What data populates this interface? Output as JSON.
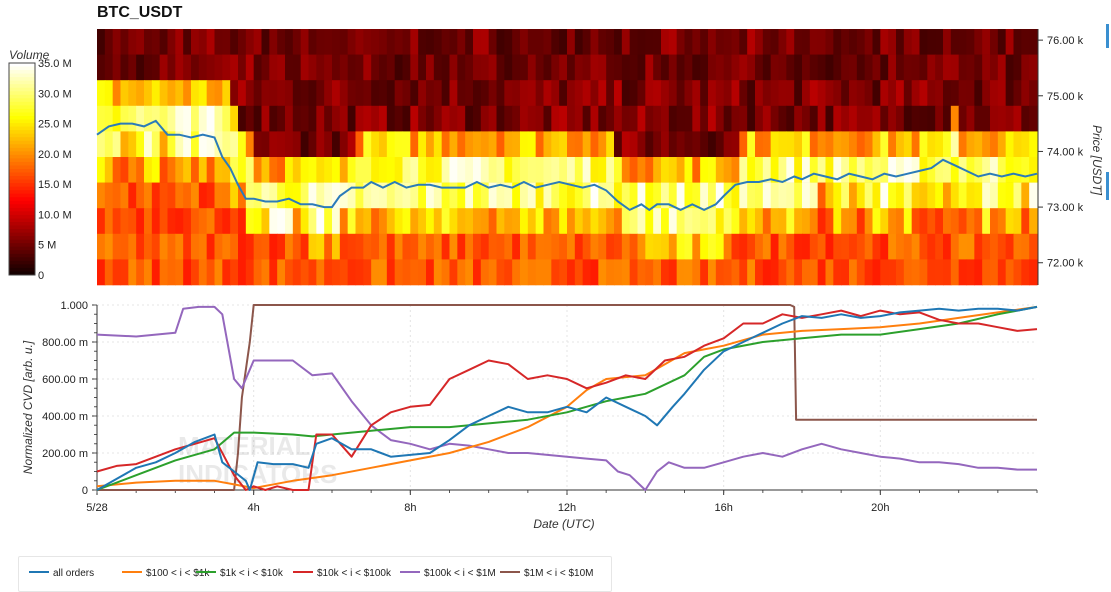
{
  "title": "BTC_USDT",
  "colors": {
    "all_orders": "#1f77b4",
    "s100_1k": "#ff7f0e",
    "s1k_10k": "#2ca02c",
    "s10k_100k": "#d62728",
    "s100k_1m": "#9467bd",
    "s1m_10m": "#8c564b"
  },
  "chart_data": [
    {
      "type": "heatmap",
      "colorbar": {
        "title": "Volume",
        "ticks": [
          "35.0 M",
          "30.0 M",
          "25.0 M",
          "20.0 M",
          "15.0 M",
          "10.0 M",
          "5 M",
          "0"
        ],
        "range": [
          0,
          35
        ],
        "colorscale": "hot"
      },
      "ylabel": "Price [USDT]",
      "yticks": [
        "76.00 k",
        "75.00 k",
        "74.00 k",
        "73.00 k",
        "72.00 k"
      ],
      "ylim": [
        71.6,
        76.2
      ],
      "price_line_color": "#2b7bb9",
      "price_line": [
        [
          0,
          74.3
        ],
        [
          0.3,
          74.45
        ],
        [
          0.6,
          74.5
        ],
        [
          0.9,
          74.5
        ],
        [
          1.2,
          74.45
        ],
        [
          1.5,
          74.55
        ],
        [
          1.8,
          74.3
        ],
        [
          2.1,
          74.3
        ],
        [
          2.4,
          74.25
        ],
        [
          2.7,
          74.3
        ],
        [
          3.0,
          74.25
        ],
        [
          3.2,
          73.9
        ],
        [
          3.4,
          73.7
        ],
        [
          3.6,
          73.4
        ],
        [
          3.8,
          73.15
        ],
        [
          4.0,
          73.15
        ],
        [
          4.3,
          73.1
        ],
        [
          4.6,
          73.1
        ],
        [
          4.9,
          73.15
        ],
        [
          5.2,
          73.05
        ],
        [
          5.5,
          73.05
        ],
        [
          5.8,
          73.0
        ],
        [
          6.0,
          73.0
        ],
        [
          6.2,
          73.2
        ],
        [
          6.5,
          73.35
        ],
        [
          6.8,
          73.35
        ],
        [
          7.0,
          73.45
        ],
        [
          7.3,
          73.35
        ],
        [
          7.6,
          73.45
        ],
        [
          7.9,
          73.35
        ],
        [
          8.2,
          73.4
        ],
        [
          8.5,
          73.4
        ],
        [
          8.8,
          73.35
        ],
        [
          9.1,
          73.35
        ],
        [
          9.4,
          73.35
        ],
        [
          9.7,
          73.45
        ],
        [
          10.0,
          73.35
        ],
        [
          10.3,
          73.4
        ],
        [
          10.6,
          73.35
        ],
        [
          10.9,
          73.45
        ],
        [
          11.2,
          73.35
        ],
        [
          11.5,
          73.4
        ],
        [
          11.8,
          73.45
        ],
        [
          12.1,
          73.4
        ],
        [
          12.4,
          73.35
        ],
        [
          12.7,
          73.4
        ],
        [
          13.0,
          73.3
        ],
        [
          13.3,
          73.1
        ],
        [
          13.6,
          72.95
        ],
        [
          13.9,
          73.05
        ],
        [
          14.1,
          72.95
        ],
        [
          14.3,
          73.05
        ],
        [
          14.6,
          73.05
        ],
        [
          14.9,
          72.95
        ],
        [
          15.2,
          73.05
        ],
        [
          15.5,
          72.95
        ],
        [
          15.8,
          73.05
        ],
        [
          16.0,
          73.2
        ],
        [
          16.3,
          73.4
        ],
        [
          16.6,
          73.45
        ],
        [
          16.9,
          73.45
        ],
        [
          17.2,
          73.5
        ],
        [
          17.5,
          73.45
        ],
        [
          17.8,
          73.55
        ],
        [
          18.0,
          73.5
        ],
        [
          18.3,
          73.6
        ],
        [
          18.6,
          73.55
        ],
        [
          18.9,
          73.5
        ],
        [
          19.2,
          73.6
        ],
        [
          19.5,
          73.55
        ],
        [
          19.8,
          73.5
        ],
        [
          20.1,
          73.6
        ],
        [
          20.4,
          73.55
        ],
        [
          20.7,
          73.6
        ],
        [
          21.0,
          73.65
        ],
        [
          21.3,
          73.7
        ],
        [
          21.6,
          73.85
        ],
        [
          21.9,
          73.75
        ],
        [
          22.2,
          73.65
        ],
        [
          22.5,
          73.55
        ],
        [
          22.8,
          73.6
        ],
        [
          23.1,
          73.55
        ],
        [
          23.4,
          73.6
        ],
        [
          23.7,
          73.55
        ],
        [
          24.0,
          73.6
        ]
      ]
    },
    {
      "type": "line",
      "xlabel": "Date (UTC)",
      "ylabel": "Normalized CVD [arb. u.]",
      "xticks": [
        "5/28",
        "4h",
        "8h",
        "12h",
        "16h",
        "20h"
      ],
      "xtick_hours": [
        0,
        4,
        8,
        12,
        16,
        20
      ],
      "yticks": [
        "0",
        "200.00 m",
        "400.00 m",
        "600.00 m",
        "800.00 m",
        "1.000"
      ],
      "xlim": [
        0,
        24
      ],
      "ylim": [
        0,
        1
      ],
      "series": [
        {
          "name": "all orders",
          "x": [
            0,
            0.5,
            1,
            1.5,
            2,
            2.5,
            3,
            3.2,
            3.5,
            3.8,
            3.9,
            4.1,
            4.5,
            5.0,
            5.4,
            5.6,
            6.0,
            6.5,
            7.0,
            7.5,
            8.0,
            8.5,
            9.0,
            9.5,
            10.0,
            10.5,
            11.0,
            11.5,
            12.0,
            12.5,
            13.0,
            13.5,
            14.0,
            14.3,
            14.7,
            15.0,
            15.5,
            16.0,
            16.5,
            17.0,
            17.5,
            18.0,
            18.5,
            19.0,
            19.5,
            20.0,
            20.5,
            21.0,
            21.5,
            22.0,
            22.5,
            23.0,
            23.5,
            24.0
          ],
          "y": [
            0.0,
            0.06,
            0.12,
            0.15,
            0.2,
            0.26,
            0.3,
            0.15,
            0.1,
            0.05,
            0.0,
            0.15,
            0.14,
            0.14,
            0.12,
            0.25,
            0.28,
            0.22,
            0.22,
            0.18,
            0.19,
            0.2,
            0.27,
            0.35,
            0.4,
            0.45,
            0.42,
            0.42,
            0.45,
            0.42,
            0.5,
            0.45,
            0.4,
            0.35,
            0.45,
            0.52,
            0.65,
            0.75,
            0.8,
            0.85,
            0.9,
            0.94,
            0.93,
            0.95,
            0.93,
            0.94,
            0.96,
            0.97,
            0.98,
            0.97,
            0.98,
            0.98,
            0.97,
            0.99
          ]
        },
        {
          "name": "$100 < i < $1k",
          "x": [
            0,
            1,
            2,
            3,
            3.5,
            4,
            5,
            6,
            7,
            8,
            9,
            10,
            11,
            12,
            12.5,
            13,
            14,
            14.5,
            15,
            15.5,
            16,
            17,
            18,
            19,
            20,
            21,
            22,
            23,
            24
          ],
          "y": [
            0.02,
            0.04,
            0.05,
            0.05,
            0.03,
            0.01,
            0.05,
            0.08,
            0.12,
            0.16,
            0.2,
            0.26,
            0.34,
            0.45,
            0.54,
            0.6,
            0.62,
            0.68,
            0.74,
            0.76,
            0.78,
            0.84,
            0.86,
            0.87,
            0.88,
            0.9,
            0.93,
            0.96,
            0.99
          ]
        },
        {
          "name": "$1k < i < $10k",
          "x": [
            0,
            1,
            2,
            3,
            3.5,
            4,
            5,
            5.5,
            6,
            7,
            8,
            9,
            10,
            11,
            12,
            13,
            14,
            15,
            15.5,
            16,
            17,
            18,
            19,
            20,
            21,
            22,
            23,
            24
          ],
          "y": [
            0.0,
            0.08,
            0.16,
            0.22,
            0.31,
            0.31,
            0.3,
            0.29,
            0.3,
            0.32,
            0.34,
            0.34,
            0.36,
            0.38,
            0.42,
            0.48,
            0.52,
            0.62,
            0.72,
            0.76,
            0.8,
            0.82,
            0.84,
            0.84,
            0.87,
            0.9,
            0.95,
            0.99
          ]
        },
        {
          "name": "$10k < i < $100k",
          "x": [
            0,
            0.5,
            1,
            1.5,
            2,
            2.5,
            3,
            3.5,
            3.8,
            4.0,
            4.3,
            4.6,
            5.0,
            5.4,
            5.6,
            6.0,
            6.5,
            7.0,
            7.5,
            8.0,
            8.5,
            9.0,
            9.5,
            10.0,
            10.5,
            11.0,
            11.5,
            12.0,
            12.5,
            13.0,
            13.5,
            14.0,
            14.5,
            15.0,
            15.5,
            16.0,
            16.5,
            17.0,
            17.5,
            18.0,
            18.5,
            19.0,
            19.5,
            20.0,
            20.5,
            21.0,
            21.5,
            22.0,
            22.5,
            23.0,
            23.5,
            24.0
          ],
          "y": [
            0.1,
            0.13,
            0.14,
            0.18,
            0.22,
            0.25,
            0.28,
            0.08,
            0.0,
            0.02,
            0.0,
            0.02,
            0.0,
            0.0,
            0.3,
            0.3,
            0.18,
            0.35,
            0.42,
            0.45,
            0.46,
            0.6,
            0.65,
            0.7,
            0.68,
            0.6,
            0.62,
            0.6,
            0.55,
            0.58,
            0.62,
            0.6,
            0.7,
            0.72,
            0.78,
            0.82,
            0.9,
            0.9,
            0.95,
            0.93,
            0.95,
            0.97,
            0.94,
            0.97,
            0.95,
            0.96,
            0.92,
            0.9,
            0.9,
            0.88,
            0.86,
            0.87
          ]
        },
        {
          "name": "$100k < i < $1M",
          "x": [
            0,
            1,
            2,
            2.2,
            2.6,
            3.0,
            3.2,
            3.5,
            3.7,
            3.8,
            4.0,
            4.5,
            5.0,
            5.5,
            6.0,
            6.5,
            7.0,
            7.5,
            8.0,
            8.5,
            9.0,
            9.5,
            10.0,
            10.5,
            11.0,
            11.5,
            12.0,
            12.5,
            13.0,
            13.3,
            13.6,
            14.0,
            14.3,
            14.6,
            15.0,
            15.5,
            16.0,
            16.5,
            17.0,
            17.5,
            18.0,
            18.5,
            19.0,
            19.5,
            20.0,
            20.5,
            21.0,
            21.5,
            22.0,
            22.5,
            23.0,
            23.5,
            24.0
          ],
          "y": [
            0.84,
            0.83,
            0.85,
            0.98,
            0.99,
            0.99,
            0.95,
            0.6,
            0.55,
            0.6,
            0.7,
            0.7,
            0.7,
            0.62,
            0.63,
            0.48,
            0.35,
            0.27,
            0.25,
            0.22,
            0.25,
            0.24,
            0.22,
            0.2,
            0.2,
            0.19,
            0.18,
            0.17,
            0.16,
            0.1,
            0.08,
            0.0,
            0.1,
            0.15,
            0.12,
            0.12,
            0.15,
            0.18,
            0.2,
            0.18,
            0.22,
            0.25,
            0.22,
            0.2,
            0.18,
            0.17,
            0.15,
            0.15,
            0.14,
            0.12,
            0.12,
            0.11,
            0.11
          ]
        },
        {
          "name": "$1M < i < $10M",
          "x": [
            0,
            3.5,
            3.6,
            3.7,
            3.9,
            4.0,
            4.05,
            17.7,
            17.8,
            17.85,
            18.0,
            24.0
          ],
          "y": [
            0.0,
            0.0,
            0.2,
            0.5,
            0.8,
            1.0,
            1.0,
            1.0,
            0.99,
            0.38,
            0.38,
            0.38
          ]
        }
      ]
    }
  ]
}
